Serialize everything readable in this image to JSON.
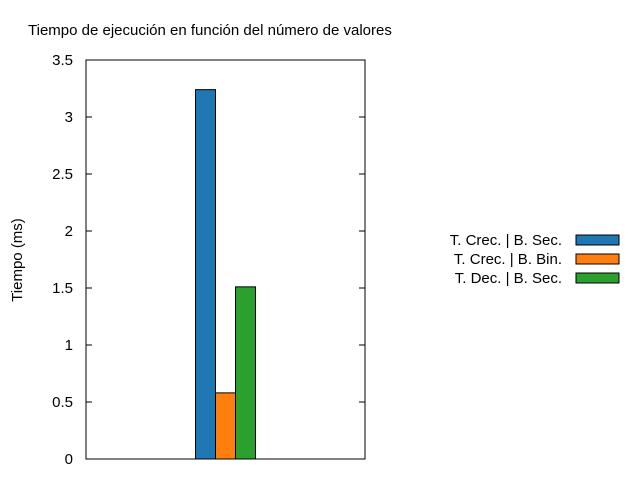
{
  "chart_data": {
    "type": "bar",
    "title": "Tiempo de ejecución en función del número de valores",
    "xlabel": "",
    "ylabel": "Tiempo (ms)",
    "ylim": [
      0,
      3.5
    ],
    "yticks": [
      "0",
      "0.5",
      "1",
      "1.5",
      "2",
      "2.5",
      "3",
      "3.5"
    ],
    "grid": false,
    "legend_position": "right",
    "categories": [
      ""
    ],
    "series": [
      {
        "name": "T. Crec. | B. Sec.",
        "color": "#1f77b4",
        "values": [
          3.24
        ]
      },
      {
        "name": "T. Crec. | B. Bin.",
        "color": "#ff7f0e",
        "values": [
          0.58
        ]
      },
      {
        "name": "T. Dec. | B. Sec.",
        "color": "#2ca02c",
        "values": [
          1.51
        ]
      }
    ]
  }
}
